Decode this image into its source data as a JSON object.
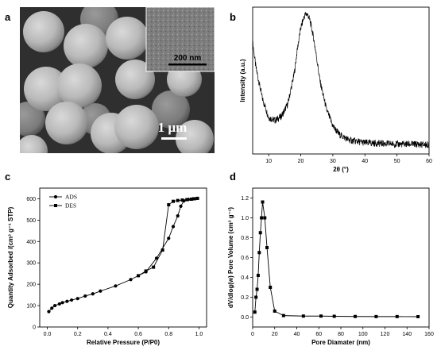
{
  "panels": {
    "a": {
      "letter": "a",
      "scale_bar_label": "1 µm",
      "inset_scale_label": "200 nm"
    },
    "b": {
      "letter": "b"
    },
    "c": {
      "letter": "c"
    },
    "d": {
      "letter": "d"
    }
  },
  "chart_data": [
    {
      "panel": "b",
      "type": "line",
      "xlabel": "2θ (°)",
      "ylabel": "Intensity (a.u.)",
      "xlim": [
        5,
        60
      ],
      "xticks": [
        10,
        20,
        30,
        40,
        50,
        60
      ],
      "yticks": [],
      "series": [
        {
          "style": "line",
          "x": [
            5,
            6,
            8,
            10,
            12,
            14,
            16,
            18,
            19,
            20,
            21,
            21.5,
            22,
            22.5,
            23,
            24,
            25,
            26,
            28,
            30,
            32,
            35,
            40,
            45,
            50,
            55,
            60
          ],
          "y": [
            0.8,
            0.62,
            0.4,
            0.26,
            0.24,
            0.27,
            0.36,
            0.58,
            0.76,
            0.9,
            0.98,
            1.0,
            1.0,
            0.98,
            0.94,
            0.83,
            0.68,
            0.52,
            0.32,
            0.2,
            0.14,
            0.1,
            0.08,
            0.075,
            0.07,
            0.07,
            0.065
          ]
        }
      ]
    },
    {
      "panel": "c",
      "type": "line",
      "xlabel": "Relative Pressure (P/P0)",
      "ylabel": "Quantity Adsorbed /(cm³ g⁻¹ STP)",
      "xlim": [
        -0.05,
        1.05
      ],
      "ylim": [
        0,
        650
      ],
      "xticks": [
        0.0,
        0.2,
        0.4,
        0.6,
        0.8,
        1.0
      ],
      "yticks": [
        0,
        100,
        200,
        300,
        400,
        500,
        600
      ],
      "legend": [
        "ADS",
        "DES"
      ],
      "series": [
        {
          "name": "ADS",
          "marker": "circle",
          "x": [
            0.01,
            0.03,
            0.05,
            0.08,
            0.1,
            0.13,
            0.16,
            0.2,
            0.25,
            0.3,
            0.35,
            0.45,
            0.55,
            0.65,
            0.72,
            0.8,
            0.83,
            0.86,
            0.88,
            0.9,
            0.93,
            0.96,
            0.99
          ],
          "y": [
            72,
            88,
            100,
            108,
            114,
            120,
            126,
            133,
            145,
            155,
            168,
            192,
            222,
            258,
            322,
            415,
            470,
            520,
            565,
            590,
            597,
            600,
            602
          ]
        },
        {
          "name": "DES",
          "marker": "square",
          "x": [
            0.99,
            0.97,
            0.95,
            0.92,
            0.89,
            0.86,
            0.83,
            0.8,
            0.76,
            0.7,
            0.65,
            0.6
          ],
          "y": [
            602,
            600,
            598,
            596,
            594,
            592,
            588,
            572,
            360,
            280,
            262,
            240
          ]
        }
      ]
    },
    {
      "panel": "d",
      "type": "line",
      "xlabel": "Pore Diamater (nm)",
      "ylabel": "dV/dlog(w) Pore Volume (cm³ g⁻¹)",
      "xlim": [
        0,
        160
      ],
      "ylim": [
        -0.1,
        1.3
      ],
      "xticks": [
        0,
        20,
        40,
        60,
        80,
        100,
        120,
        140,
        160
      ],
      "yticks": [
        0.0,
        0.2,
        0.4,
        0.6,
        0.8,
        1.0,
        1.2
      ],
      "series": [
        {
          "marker": "square",
          "x": [
            2,
            3,
            4,
            5,
            6,
            7,
            8,
            9,
            11,
            13,
            16,
            20,
            28,
            46,
            62,
            74,
            93,
            112,
            131,
            150
          ],
          "y": [
            0.05,
            0.2,
            0.28,
            0.42,
            0.65,
            0.85,
            1.0,
            1.16,
            1.0,
            0.7,
            0.3,
            0.06,
            0.015,
            0.01,
            0.01,
            0.008,
            0.006,
            0.005,
            0.005,
            0.004
          ]
        }
      ]
    }
  ]
}
